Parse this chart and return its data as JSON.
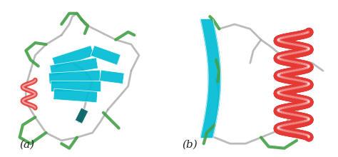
{
  "figure_width": 4.74,
  "figure_height": 2.2,
  "dpi": 100,
  "background_color": "#ffffff",
  "panel_a_label": "(a)",
  "panel_b_label": "(b)",
  "label_fontsize": 11,
  "label_color": "#222222",
  "colors": {
    "beta_sheet": "#00bcd4",
    "alpha_helix": "#e53935",
    "loop": "#43a047",
    "coil": "#aaaaaa",
    "small_beta": "#006064"
  }
}
